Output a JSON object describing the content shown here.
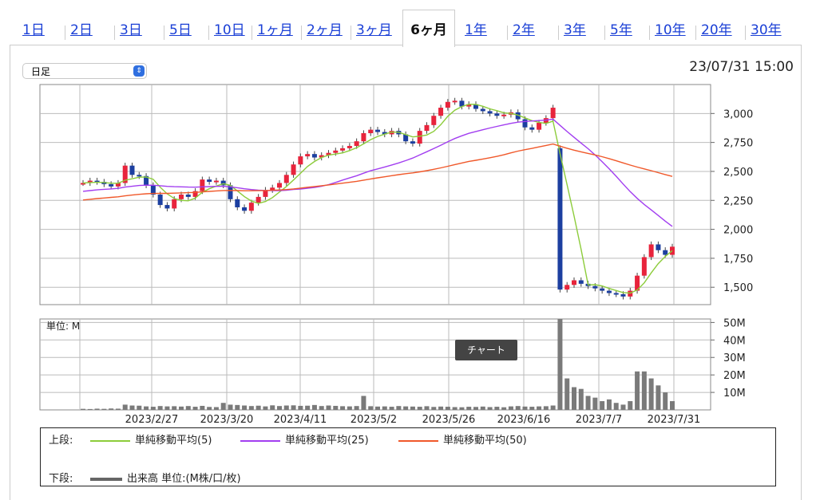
{
  "tabs": [
    {
      "label": "1日"
    },
    {
      "label": "2日"
    },
    {
      "label": "3日"
    },
    {
      "label": "5日"
    },
    {
      "label": "10日"
    },
    {
      "label": "1ヶ月"
    },
    {
      "label": "2ヶ月"
    },
    {
      "label": "3ヶ月"
    },
    {
      "label": "6ヶ月",
      "active": true
    },
    {
      "label": "1年"
    },
    {
      "label": "2年"
    },
    {
      "label": "3年"
    },
    {
      "label": "5年"
    },
    {
      "label": "10年"
    },
    {
      "label": "20年"
    },
    {
      "label": "30年"
    }
  ],
  "select": {
    "value": "日足"
  },
  "datetime": "23/07/31 15:00",
  "tooltip": "チャート",
  "legend": {
    "upper_label": "上段:",
    "lower_label": "下段:",
    "ma5": "単純移動平均(5)",
    "ma25": "単純移動平均(25)",
    "ma50": "単純移動平均(50)",
    "volume": "出来高 単位:(M株/口/枚)",
    "colors": {
      "ma5": "#8ccc3a",
      "ma25": "#a23ef0",
      "ma50": "#f0582a",
      "volume": "#666666",
      "up": "#e8243c",
      "down": "#1c3fa0"
    }
  },
  "chart_data": [
    {
      "type": "candlestick",
      "title": "",
      "x_ticks": [
        "2023/2/27",
        "2023/3/20",
        "2023/4/11",
        "2023/5/2",
        "2023/5/26",
        "2023/6/16",
        "2023/7/7",
        "2023/7/31"
      ],
      "y_ticks": [
        "3,000",
        "2,750",
        "2,500",
        "2,250",
        "2,000",
        "1,750",
        "1,500"
      ],
      "ylim": [
        1350,
        3250
      ],
      "grid": true,
      "series_close": [
        2400,
        2420,
        2410,
        2390,
        2370,
        2400,
        2550,
        2470,
        2460,
        2380,
        2300,
        2210,
        2180,
        2260,
        2300,
        2280,
        2330,
        2430,
        2410,
        2420,
        2380,
        2260,
        2190,
        2160,
        2230,
        2280,
        2340,
        2360,
        2400,
        2470,
        2560,
        2630,
        2650,
        2620,
        2640,
        2660,
        2680,
        2700,
        2720,
        2760,
        2830,
        2860,
        2840,
        2820,
        2850,
        2820,
        2760,
        2740,
        2850,
        2900,
        2980,
        3050,
        3100,
        3110,
        3060,
        3080,
        3040,
        3020,
        3000,
        2980,
        2990,
        3010,
        2950,
        2880,
        2860,
        2920,
        2960,
        3050,
        1480,
        1520,
        1560,
        1530,
        1510,
        1490,
        1470,
        1450,
        1440,
        1420,
        1470,
        1600,
        1760,
        1870,
        1820,
        1780,
        1850
      ],
      "ma50_note": "line drawn from data"
    },
    {
      "type": "bar",
      "title": "",
      "unit_label": "単位: M",
      "y_ticks": [
        "50M",
        "40M",
        "30M",
        "20M",
        "10M"
      ],
      "ylim": [
        0,
        52
      ],
      "values": [
        0.6,
        0.5,
        0.7,
        0.6,
        0.8,
        0.7,
        3,
        2.5,
        2.4,
        2,
        1.8,
        2.2,
        2,
        2.1,
        1.9,
        2.2,
        1.8,
        2.3,
        1.7,
        1.6,
        4,
        3,
        2.8,
        2.5,
        2.2,
        2.4,
        2,
        2.6,
        2.2,
        2.5,
        2.6,
        2.3,
        2.4,
        2.8,
        2.2,
        2.5,
        2.3,
        2.1,
        2,
        2.2,
        8,
        2.1,
        1.9,
        2,
        1.8,
        2.2,
        2,
        1.9,
        1.8,
        2.1,
        1.7,
        1.9,
        1.8,
        1.6,
        1.5,
        1.8,
        1.7,
        1.9,
        1.6,
        1.8,
        1.5,
        2,
        2.2,
        1.9,
        1.8,
        2,
        2.1,
        2.5,
        52,
        18,
        13,
        12,
        8,
        7,
        5,
        6,
        4,
        3,
        5,
        22,
        22,
        18,
        14,
        10,
        5
      ]
    }
  ]
}
